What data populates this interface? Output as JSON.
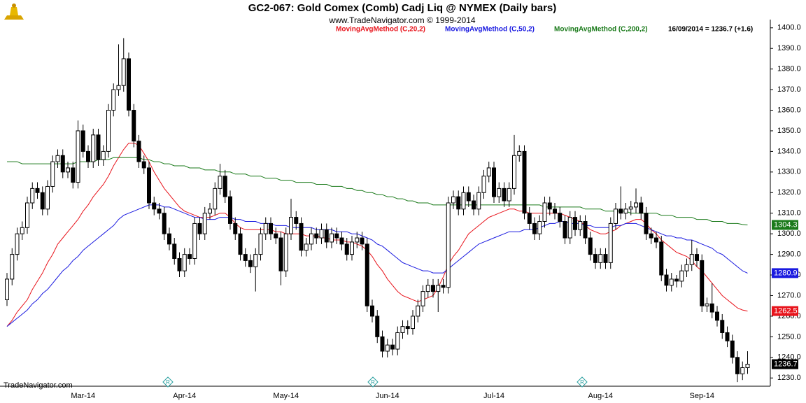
{
  "chart_data": {
    "type": "candlestick",
    "title": "GC2-067:  Gold Comex (Comb) Cadj Liq @ NYMEX  (Daily bars)",
    "subtitle": "www.TradeNavigator.com © 1999-2014",
    "annotation": "16/09/2014 = 1236.7 (+1.6)",
    "footer": "TradeNavigator.com",
    "color": "#000000",
    "categories": [
      null,
      null,
      null,
      null,
      null,
      null,
      null,
      null,
      null,
      null,
      null,
      null,
      null,
      null,
      null,
      "Mar-14",
      null,
      null,
      null,
      null,
      null,
      null,
      null,
      null,
      null,
      null,
      null,
      null,
      null,
      null,
      null,
      null,
      null,
      null,
      null,
      "Apr-14",
      null,
      null,
      null,
      null,
      null,
      null,
      null,
      null,
      null,
      null,
      null,
      null,
      null,
      null,
      null,
      null,
      null,
      null,
      null,
      "May-14",
      null,
      null,
      null,
      null,
      null,
      null,
      null,
      null,
      null,
      null,
      null,
      null,
      null,
      null,
      null,
      null,
      null,
      null,
      null,
      "Jun-14",
      null,
      null,
      null,
      null,
      null,
      null,
      null,
      null,
      null,
      null,
      null,
      null,
      null,
      null,
      null,
      null,
      null,
      null,
      null,
      null,
      "Jul-14",
      null,
      null,
      null,
      null,
      null,
      null,
      null,
      null,
      null,
      null,
      null,
      null,
      null,
      null,
      null,
      null,
      null,
      null,
      null,
      null,
      "Aug-14",
      null,
      null,
      null,
      null,
      null,
      null,
      null,
      null,
      null,
      null,
      null,
      null,
      null,
      null,
      null,
      null,
      null,
      null,
      null,
      "Sep-14",
      null,
      null,
      null,
      null,
      null,
      null,
      null,
      null,
      null
    ],
    "open": [
      1268,
      1278,
      1290,
      1300,
      1303,
      1315,
      1322,
      1320,
      1312,
      1323,
      1335,
      1338,
      1330,
      1332,
      1325,
      1350,
      1340,
      1335,
      1348,
      1336,
      1340,
      1360,
      1370,
      1372,
      1385,
      1360,
      1345,
      1335,
      1332,
      1315,
      1312,
      1310,
      1300,
      1295,
      1288,
      1282,
      1290,
      1288,
      1305,
      1300,
      1310,
      1312,
      1322,
      1328,
      1318,
      1305,
      1300,
      1290,
      1287,
      1284,
      1290,
      1300,
      1305,
      1300,
      1298,
      1282,
      1300,
      1308,
      1305,
      1292,
      1295,
      1300,
      1298,
      1302,
      1296,
      1300,
      1298,
      1295,
      1290,
      1296,
      1298,
      1295,
      1265,
      1260,
      1250,
      1243,
      1246,
      1244,
      1252,
      1255,
      1254,
      1260,
      1265,
      1272,
      1275,
      1272,
      1275,
      1274,
      1315,
      1318,
      1312,
      1320,
      1316,
      1312,
      1320,
      1328,
      1332,
      1318,
      1322,
      1316,
      1322,
      1338,
      1340,
      1310,
      1305,
      1300,
      1306,
      1315,
      1312,
      1310,
      1306,
      1298,
      1308,
      1302,
      1306,
      1298,
      1290,
      1286,
      1290,
      1286,
      1305,
      1312,
      1310,
      1312,
      1313,
      1315,
      1310,
      1300,
      1298,
      1296,
      1280,
      1275,
      1278,
      1277,
      1282,
      1285,
      1290,
      1287,
      1265,
      1266,
      1262,
      1258,
      1252,
      1248,
      1240,
      1232,
      1235
    ],
    "high": [
      1281,
      1293,
      1303,
      1306,
      1318,
      1325,
      1325,
      1323,
      1326,
      1338,
      1341,
      1341,
      1335,
      1335,
      1355,
      1353,
      1343,
      1351,
      1351,
      1343,
      1363,
      1373,
      1392,
      1395,
      1388,
      1363,
      1348,
      1338,
      1335,
      1318,
      1315,
      1313,
      1303,
      1298,
      1291,
      1293,
      1293,
      1308,
      1308,
      1313,
      1315,
      1325,
      1334,
      1331,
      1321,
      1308,
      1303,
      1293,
      1290,
      1293,
      1303,
      1308,
      1308,
      1303,
      1301,
      1303,
      1317,
      1311,
      1308,
      1298,
      1303,
      1303,
      1305,
      1305,
      1303,
      1303,
      1301,
      1298,
      1299,
      1301,
      1301,
      1298,
      1268,
      1263,
      1253,
      1249,
      1249,
      1255,
      1258,
      1258,
      1263,
      1268,
      1275,
      1278,
      1278,
      1278,
      1278,
      1318,
      1321,
      1321,
      1323,
      1323,
      1319,
      1323,
      1331,
      1335,
      1335,
      1325,
      1325,
      1325,
      1348,
      1343,
      1343,
      1313,
      1308,
      1309,
      1318,
      1318,
      1315,
      1313,
      1309,
      1311,
      1311,
      1309,
      1309,
      1301,
      1293,
      1293,
      1293,
      1308,
      1315,
      1323,
      1315,
      1316,
      1322,
      1318,
      1313,
      1303,
      1301,
      1299,
      1283,
      1281,
      1280,
      1285,
      1288,
      1297,
      1293,
      1290,
      1269,
      1276,
      1265,
      1261,
      1255,
      1251,
      1243,
      1238,
      1243
    ],
    "low": [
      1265,
      1275,
      1287,
      1297,
      1300,
      1312,
      1317,
      1309,
      1309,
      1320,
      1332,
      1327,
      1327,
      1322,
      1322,
      1337,
      1332,
      1332,
      1333,
      1333,
      1337,
      1357,
      1367,
      1369,
      1357,
      1342,
      1332,
      1329,
      1312,
      1309,
      1307,
      1297,
      1292,
      1285,
      1279,
      1279,
      1285,
      1285,
      1297,
      1297,
      1307,
      1309,
      1319,
      1315,
      1302,
      1297,
      1287,
      1284,
      1281,
      1272,
      1287,
      1297,
      1297,
      1295,
      1275,
      1279,
      1297,
      1302,
      1289,
      1289,
      1292,
      1295,
      1295,
      1293,
      1293,
      1295,
      1292,
      1287,
      1287,
      1293,
      1292,
      1262,
      1257,
      1247,
      1240,
      1240,
      1241,
      1241,
      1249,
      1251,
      1251,
      1257,
      1262,
      1269,
      1269,
      1262,
      1271,
      1271,
      1312,
      1309,
      1309,
      1313,
      1309,
      1309,
      1317,
      1325,
      1315,
      1315,
      1313,
      1313,
      1319,
      1335,
      1307,
      1302,
      1297,
      1297,
      1303,
      1309,
      1307,
      1303,
      1295,
      1295,
      1299,
      1299,
      1295,
      1287,
      1283,
      1283,
      1283,
      1283,
      1302,
      1307,
      1307,
      1309,
      1310,
      1307,
      1297,
      1295,
      1293,
      1277,
      1272,
      1272,
      1274,
      1274,
      1279,
      1282,
      1284,
      1262,
      1262,
      1259,
      1255,
      1249,
      1245,
      1237,
      1228,
      1229,
      1232
    ],
    "close": [
      1278,
      1290,
      1300,
      1303,
      1315,
      1322,
      1320,
      1312,
      1323,
      1335,
      1338,
      1330,
      1332,
      1325,
      1350,
      1340,
      1335,
      1348,
      1336,
      1340,
      1360,
      1370,
      1372,
      1385,
      1360,
      1345,
      1335,
      1332,
      1315,
      1312,
      1310,
      1300,
      1295,
      1288,
      1282,
      1290,
      1288,
      1305,
      1300,
      1310,
      1312,
      1322,
      1328,
      1318,
      1305,
      1300,
      1290,
      1287,
      1284,
      1290,
      1300,
      1305,
      1300,
      1298,
      1282,
      1300,
      1308,
      1305,
      1292,
      1295,
      1300,
      1298,
      1302,
      1296,
      1300,
      1298,
      1295,
      1290,
      1296,
      1298,
      1295,
      1265,
      1260,
      1250,
      1243,
      1246,
      1244,
      1252,
      1255,
      1254,
      1260,
      1265,
      1272,
      1275,
      1272,
      1275,
      1274,
      1315,
      1318,
      1312,
      1320,
      1316,
      1312,
      1320,
      1328,
      1332,
      1318,
      1322,
      1316,
      1322,
      1338,
      1340,
      1310,
      1305,
      1300,
      1306,
      1315,
      1312,
      1310,
      1306,
      1298,
      1308,
      1302,
      1306,
      1298,
      1290,
      1286,
      1290,
      1286,
      1305,
      1312,
      1310,
      1312,
      1313,
      1315,
      1310,
      1300,
      1298,
      1296,
      1280,
      1275,
      1278,
      1277,
      1282,
      1285,
      1290,
      1287,
      1265,
      1266,
      1262,
      1258,
      1252,
      1248,
      1240,
      1232,
      1235,
      1236.7
    ],
    "series": [
      {
        "name": "MovingAvgMethod (C,20,2)",
        "color": "#e8141c",
        "values": [
          1255,
          1258,
          1262,
          1265,
          1268,
          1273,
          1277,
          1281,
          1286,
          1290,
          1295,
          1298,
          1301,
          1304,
          1307,
          1311,
          1314,
          1318,
          1321,
          1324,
          1328,
          1333,
          1337,
          1341,
          1344,
          1344,
          1343,
          1339,
          1335,
          1330,
          1326,
          1322,
          1319,
          1316,
          1313,
          1311,
          1310,
          1309,
          1308,
          1308,
          1308,
          1309,
          1310,
          1310,
          1308,
          1305,
          1303,
          1302,
          1302,
          1302,
          1302,
          1302,
          1302,
          1301,
          1301,
          1300,
          1300,
          1300,
          1300,
          1299,
          1299,
          1299,
          1298,
          1298,
          1297,
          1297,
          1297,
          1296,
          1296,
          1295,
          1294,
          1292,
          1289,
          1285,
          1282,
          1278,
          1275,
          1272,
          1270,
          1269,
          1268,
          1267,
          1268,
          1269,
          1270,
          1274,
          1279,
          1285,
          1289,
          1292,
          1296,
          1300,
          1302,
          1304,
          1306,
          1308,
          1309,
          1310,
          1311,
          1312,
          1312,
          1311,
          1311,
          1310,
          1310,
          1310,
          1310,
          1310,
          1310,
          1310,
          1309,
          1308,
          1307,
          1306,
          1304,
          1302,
          1301,
          1300,
          1300,
          1301,
          1302,
          1304,
          1305,
          1306,
          1307,
          1307,
          1305,
          1302,
          1300,
          1297,
          1295,
          1293,
          1291,
          1290,
          1289,
          1287,
          1284,
          1282,
          1279,
          1276,
          1273,
          1270,
          1268,
          1266,
          1264,
          1263,
          1262.5
        ]
      },
      {
        "name": "MovingAvgMethod (C,50,2)",
        "color": "#1a1ae0",
        "values": [
          1255,
          1257,
          1259,
          1261,
          1263,
          1266,
          1268,
          1271,
          1273,
          1276,
          1279,
          1282,
          1284,
          1287,
          1289,
          1292,
          1294,
          1296,
          1298,
          1300,
          1302,
          1304,
          1307,
          1309,
          1310,
          1311,
          1312,
          1313,
          1314,
          1314,
          1314,
          1313,
          1313,
          1312,
          1311,
          1310,
          1309,
          1308,
          1308,
          1307,
          1307,
          1307,
          1308,
          1308,
          1308,
          1307,
          1307,
          1306,
          1306,
          1306,
          1305,
          1305,
          1305,
          1304,
          1304,
          1304,
          1303,
          1303,
          1303,
          1303,
          1303,
          1302,
          1302,
          1302,
          1302,
          1301,
          1301,
          1301,
          1300,
          1300,
          1299,
          1298,
          1297,
          1295,
          1294,
          1292,
          1290,
          1288,
          1286,
          1285,
          1284,
          1283,
          1282,
          1282,
          1281,
          1281,
          1281,
          1283,
          1285,
          1287,
          1289,
          1291,
          1293,
          1295,
          1296,
          1297,
          1298,
          1299,
          1300,
          1301,
          1301,
          1301,
          1302,
          1302,
          1302,
          1303,
          1304,
          1305,
          1305,
          1306,
          1306,
          1305,
          1305,
          1305,
          1304,
          1304,
          1303,
          1303,
          1303,
          1303,
          1304,
          1304,
          1305,
          1305,
          1305,
          1304,
          1303,
          1302,
          1301,
          1300,
          1299,
          1299,
          1298,
          1298,
          1297,
          1297,
          1296,
          1295,
          1294,
          1293,
          1291,
          1290,
          1288,
          1286,
          1284,
          1282,
          1280.9
        ]
      },
      {
        "name": "MovingAvgMethod (C,200,2)",
        "color": "#1a7a1a",
        "values": [
          1335,
          1335,
          1335,
          1334,
          1334,
          1334,
          1334,
          1334,
          1334,
          1334,
          1334,
          1334,
          1334,
          1334,
          1335,
          1335,
          1335,
          1335,
          1336,
          1336,
          1336,
          1337,
          1337,
          1337,
          1337,
          1337,
          1337,
          1336,
          1336,
          1335,
          1335,
          1334,
          1334,
          1333,
          1333,
          1333,
          1332,
          1332,
          1332,
          1331,
          1331,
          1331,
          1330,
          1330,
          1330,
          1329,
          1329,
          1329,
          1328,
          1328,
          1328,
          1327,
          1327,
          1327,
          1326,
          1326,
          1326,
          1325,
          1325,
          1325,
          1325,
          1324,
          1324,
          1324,
          1323,
          1323,
          1323,
          1322,
          1322,
          1321,
          1321,
          1320,
          1320,
          1319,
          1319,
          1318,
          1318,
          1317,
          1317,
          1316,
          1316,
          1315,
          1315,
          1315,
          1314,
          1314,
          1314,
          1314,
          1314,
          1314,
          1314,
          1314,
          1314,
          1314,
          1314,
          1314,
          1314,
          1314,
          1314,
          1314,
          1314,
          1314,
          1314,
          1314,
          1314,
          1314,
          1313,
          1313,
          1313,
          1313,
          1313,
          1313,
          1313,
          1313,
          1312,
          1312,
          1312,
          1312,
          1311,
          1311,
          1311,
          1311,
          1311,
          1310,
          1310,
          1310,
          1310,
          1310,
          1310,
          1309,
          1309,
          1309,
          1308,
          1308,
          1308,
          1308,
          1307,
          1307,
          1307,
          1306,
          1306,
          1306,
          1305,
          1305,
          1305,
          1304.5,
          1304.3
        ]
      }
    ],
    "ylim": [
      1226,
      1404
    ],
    "yticks": [
      {
        "value": 1230,
        "label": "1230.0"
      },
      {
        "value": 1240,
        "label": "1240.0"
      },
      {
        "value": 1250,
        "label": "1250.0"
      },
      {
        "value": 1260,
        "label": "1260.0"
      },
      {
        "value": 1270,
        "label": "1270.0"
      },
      {
        "value": 1280,
        "label": "1280.0"
      },
      {
        "value": 1290,
        "label": "1290.0"
      },
      {
        "value": 1300,
        "label": "1300.0"
      },
      {
        "value": 1310,
        "label": "1310.0"
      },
      {
        "value": 1320,
        "label": "1320.0"
      },
      {
        "value": 1330,
        "label": "1330.0"
      },
      {
        "value": 1340,
        "label": "1340.0"
      },
      {
        "value": 1350,
        "label": "1350.0"
      },
      {
        "value": 1360,
        "label": "1360.0"
      },
      {
        "value": 1370,
        "label": "1370.0"
      },
      {
        "value": 1380,
        "label": "1380.0"
      },
      {
        "value": 1390,
        "label": "1390.0"
      },
      {
        "value": 1400,
        "label": "1400.0"
      }
    ]
  }
}
